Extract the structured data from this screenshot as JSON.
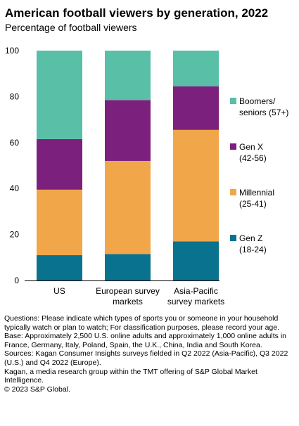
{
  "header": {
    "title": "American football viewers by generation, 2022",
    "subtitle": "Percentage of football viewers"
  },
  "chart_data": {
    "type": "bar",
    "stacked": true,
    "categories": [
      [
        "US"
      ],
      [
        "European survey",
        "markets"
      ],
      [
        "Asia-Pacific",
        "survey markets"
      ]
    ],
    "series": [
      {
        "name": [
          "Gen Z",
          "(18-24)"
        ],
        "color": "#09728f",
        "values": [
          11,
          11.5,
          17
        ]
      },
      {
        "name": [
          "Millennial",
          "(25-41)"
        ],
        "color": "#f2a64a",
        "values": [
          28.5,
          40.5,
          48.5
        ]
      },
      {
        "name": [
          "Gen X",
          "(42-56)"
        ],
        "color": "#7b217d",
        "values": [
          22,
          26.5,
          19
        ]
      },
      {
        "name": [
          "Boomers/",
          "seniors (57+)"
        ],
        "color": "#59bfa6",
        "values": [
          38.5,
          21.5,
          15.5
        ]
      }
    ],
    "ylim": [
      0,
      100
    ],
    "yticks": [
      0,
      20,
      40,
      60,
      80,
      100
    ],
    "grid": false,
    "legend": "right",
    "legend_order": [
      3,
      2,
      1,
      0
    ]
  },
  "notes": {
    "questions": "Questions: Please indicate which types of sports you or someone in your household typically watch or plan to watch; For classification purposes, please record your age.",
    "base": "Base: Approximately 2,500 U.S. online adults and approximately 1,000 online adults in France, Germany, Italy, Poland, Spain, the U.K., China, India and South Korea.",
    "sources": "Sources: Kagan Consumer Insights surveys fielded in Q2 2022 (Asia-Pacific), Q3 2022 (U.S.) and Q4 2022 (Europe).",
    "kagan": "Kagan, a media research group within the TMT offering of S&P Global Market Intelligence.",
    "copyright": "© 2023 S&P Global."
  }
}
